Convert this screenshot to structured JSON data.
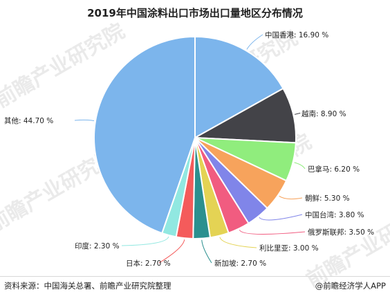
{
  "chart_data": {
    "type": "pie",
    "title": "2019年中国涂料出口市场出口量地区分布情况",
    "unit": "%",
    "categories": [
      "中国香港",
      "越南",
      "巴拿马",
      "朝鲜",
      "中国台湾",
      "俄罗斯联邦",
      "利比里亚",
      "新加坡",
      "日本",
      "印度",
      "其他"
    ],
    "values": [
      16.9,
      8.9,
      6.2,
      5.3,
      3.8,
      3.5,
      3.0,
      2.7,
      2.7,
      2.3,
      44.7
    ],
    "labels": [
      "中国香港: 16.90 %",
      "越南: 8.90 %",
      "巴拿马: 6.20 %",
      "朝鲜: 5.30 %",
      "中国台湾: 3.80 %",
      "俄罗斯联邦: 3.50 %",
      "利比里亚: 3.00 %",
      "新加坡: 2.70 %",
      "日本: 2.70 %",
      "印度: 2.30 %",
      "其他: 44.70 %"
    ],
    "colors": [
      "#7cb5ec",
      "#434348",
      "#90ed7d",
      "#f7a35c",
      "#8085e9",
      "#f15c80",
      "#e4d354",
      "#2b908f",
      "#f45b5b",
      "#91e8e1",
      "#7cb5ec"
    ],
    "legend": "none"
  },
  "footer": {
    "source": "资料来源：中国海关总署、前瞻产业研究院整理",
    "brand": "@前瞻经济学人APP"
  },
  "watermarks": [
    "前瞻产业研究院",
    "前瞻产业研究院",
    "前瞻产业研究院",
    "前瞻产业研究院",
    "前瞻产业研究院"
  ]
}
